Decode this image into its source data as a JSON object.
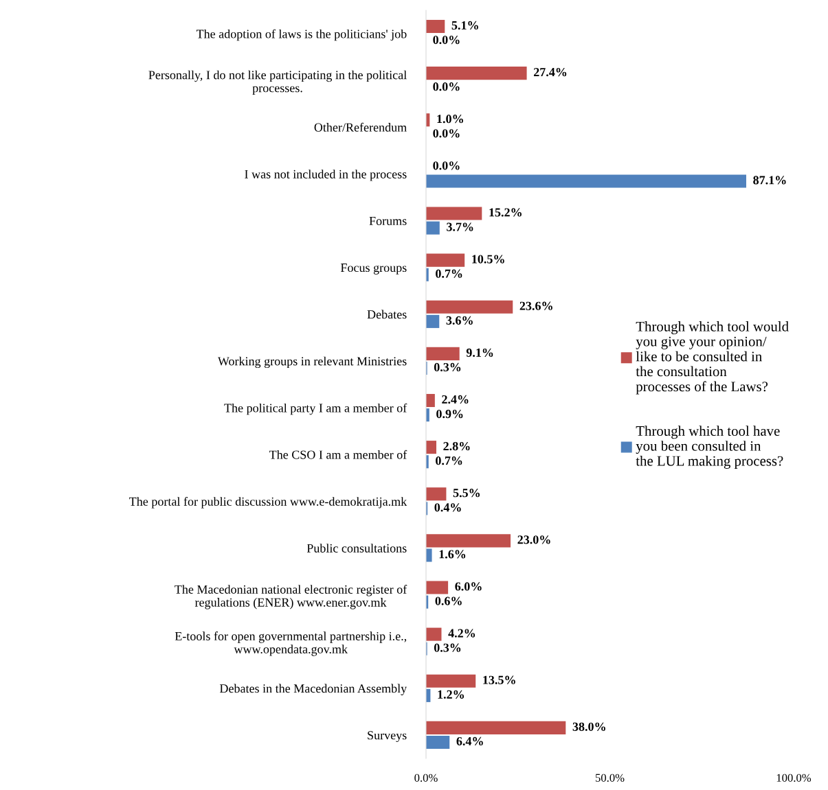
{
  "chart_data": {
    "type": "bar",
    "orientation": "horizontal",
    "categories": [
      "The adoption of laws is the politicians' job",
      "Personally, I do not like participating in the political processes.",
      "Other/Referendum",
      "I was not included in the process",
      "Forums",
      "Focus groups",
      "Debates",
      "Working groups in relevant Ministries",
      "The political party I am a member of",
      "The CSO I am a member of",
      "The portal for public discussion www.e-demokratija.mk",
      "Public consultations",
      "The Macedonian national electronic register of regulations (ENER) www.ener.gov.mk",
      "E-tools for open governmental partnership i.e., www.opendata.gov.mk",
      "Debates in the Macedonian Assembly",
      "Surveys"
    ],
    "series": [
      {
        "name": "Through which tool would you give your opinion/ like to be consulted in the consultation processes of the Laws?",
        "color": "#c0504d",
        "values": [
          5.1,
          27.4,
          1.0,
          0.0,
          15.2,
          10.5,
          23.6,
          9.1,
          2.4,
          2.8,
          5.5,
          23.0,
          6.0,
          4.2,
          13.5,
          38.0
        ],
        "value_labels": [
          "5.1%",
          "27.4%",
          "1.0%",
          "0.0%",
          "15.2%",
          "10.5%",
          "23.6%",
          "9.1%",
          "2.4%",
          "2.8%",
          "5.5%",
          "23.0%",
          "6.0%",
          "4.2%",
          "13.5%",
          "38.0%"
        ]
      },
      {
        "name": "Through which tool have you been consulted in the LUL making process?",
        "color": "#4f81bd",
        "values": [
          0.0,
          0.0,
          0.0,
          87.1,
          3.7,
          0.7,
          3.6,
          0.3,
          0.9,
          0.7,
          0.4,
          1.6,
          0.6,
          0.3,
          1.2,
          6.4
        ],
        "value_labels": [
          "0.0%",
          "0.0%",
          "0.0%",
          "87.1%",
          "3.7%",
          "0.7%",
          "3.6%",
          "0.3%",
          "0.9%",
          "0.7%",
          "0.4%",
          "1.6%",
          "0.6%",
          "0.3%",
          "1.2%",
          "6.4%"
        ]
      }
    ],
    "xlim": [
      0,
      100
    ],
    "xticks": [
      {
        "value": 0,
        "label": "0.0%"
      },
      {
        "value": 50,
        "label": "50.0%"
      },
      {
        "value": 100,
        "label": "100.0%"
      }
    ],
    "grid": false,
    "legend": "right"
  }
}
